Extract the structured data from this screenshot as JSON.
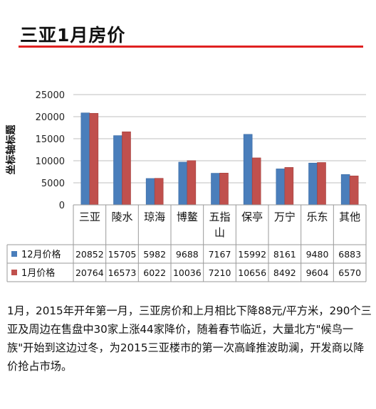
{
  "title": "三亚1月房价",
  "chart_data": {
    "type": "bar",
    "ylabel": "坐标轴标题",
    "ylim": [
      0,
      25000
    ],
    "yticks": [
      0,
      5000,
      10000,
      15000,
      20000,
      25000
    ],
    "categories": [
      "三亚",
      "陵水",
      "琼海",
      "博鳌",
      "五指山",
      "保亭",
      "万宁",
      "乐东",
      "其他"
    ],
    "series": [
      {
        "name": "12月价格",
        "color": "#4a7ebb",
        "values": [
          20852,
          15705,
          5982,
          9688,
          7167,
          15992,
          8161,
          9480,
          6883
        ]
      },
      {
        "name": "1月价格",
        "color": "#c0504d",
        "values": [
          20764,
          16573,
          6022,
          10036,
          7210,
          10656,
          8492,
          9604,
          6570
        ]
      }
    ],
    "data_table": true,
    "grid": true
  },
  "description": "1月，2015年开年第一月，三亚房价和上月相比下降88元/平方米，290个三亚及周边在售盘中30家上涨44家降价，随着春节临近，大量北方\"候鸟一族\"开始到这边过冬，为2015三亚楼市的第一次高峰推波助澜，开发商以降价抢占市场。"
}
